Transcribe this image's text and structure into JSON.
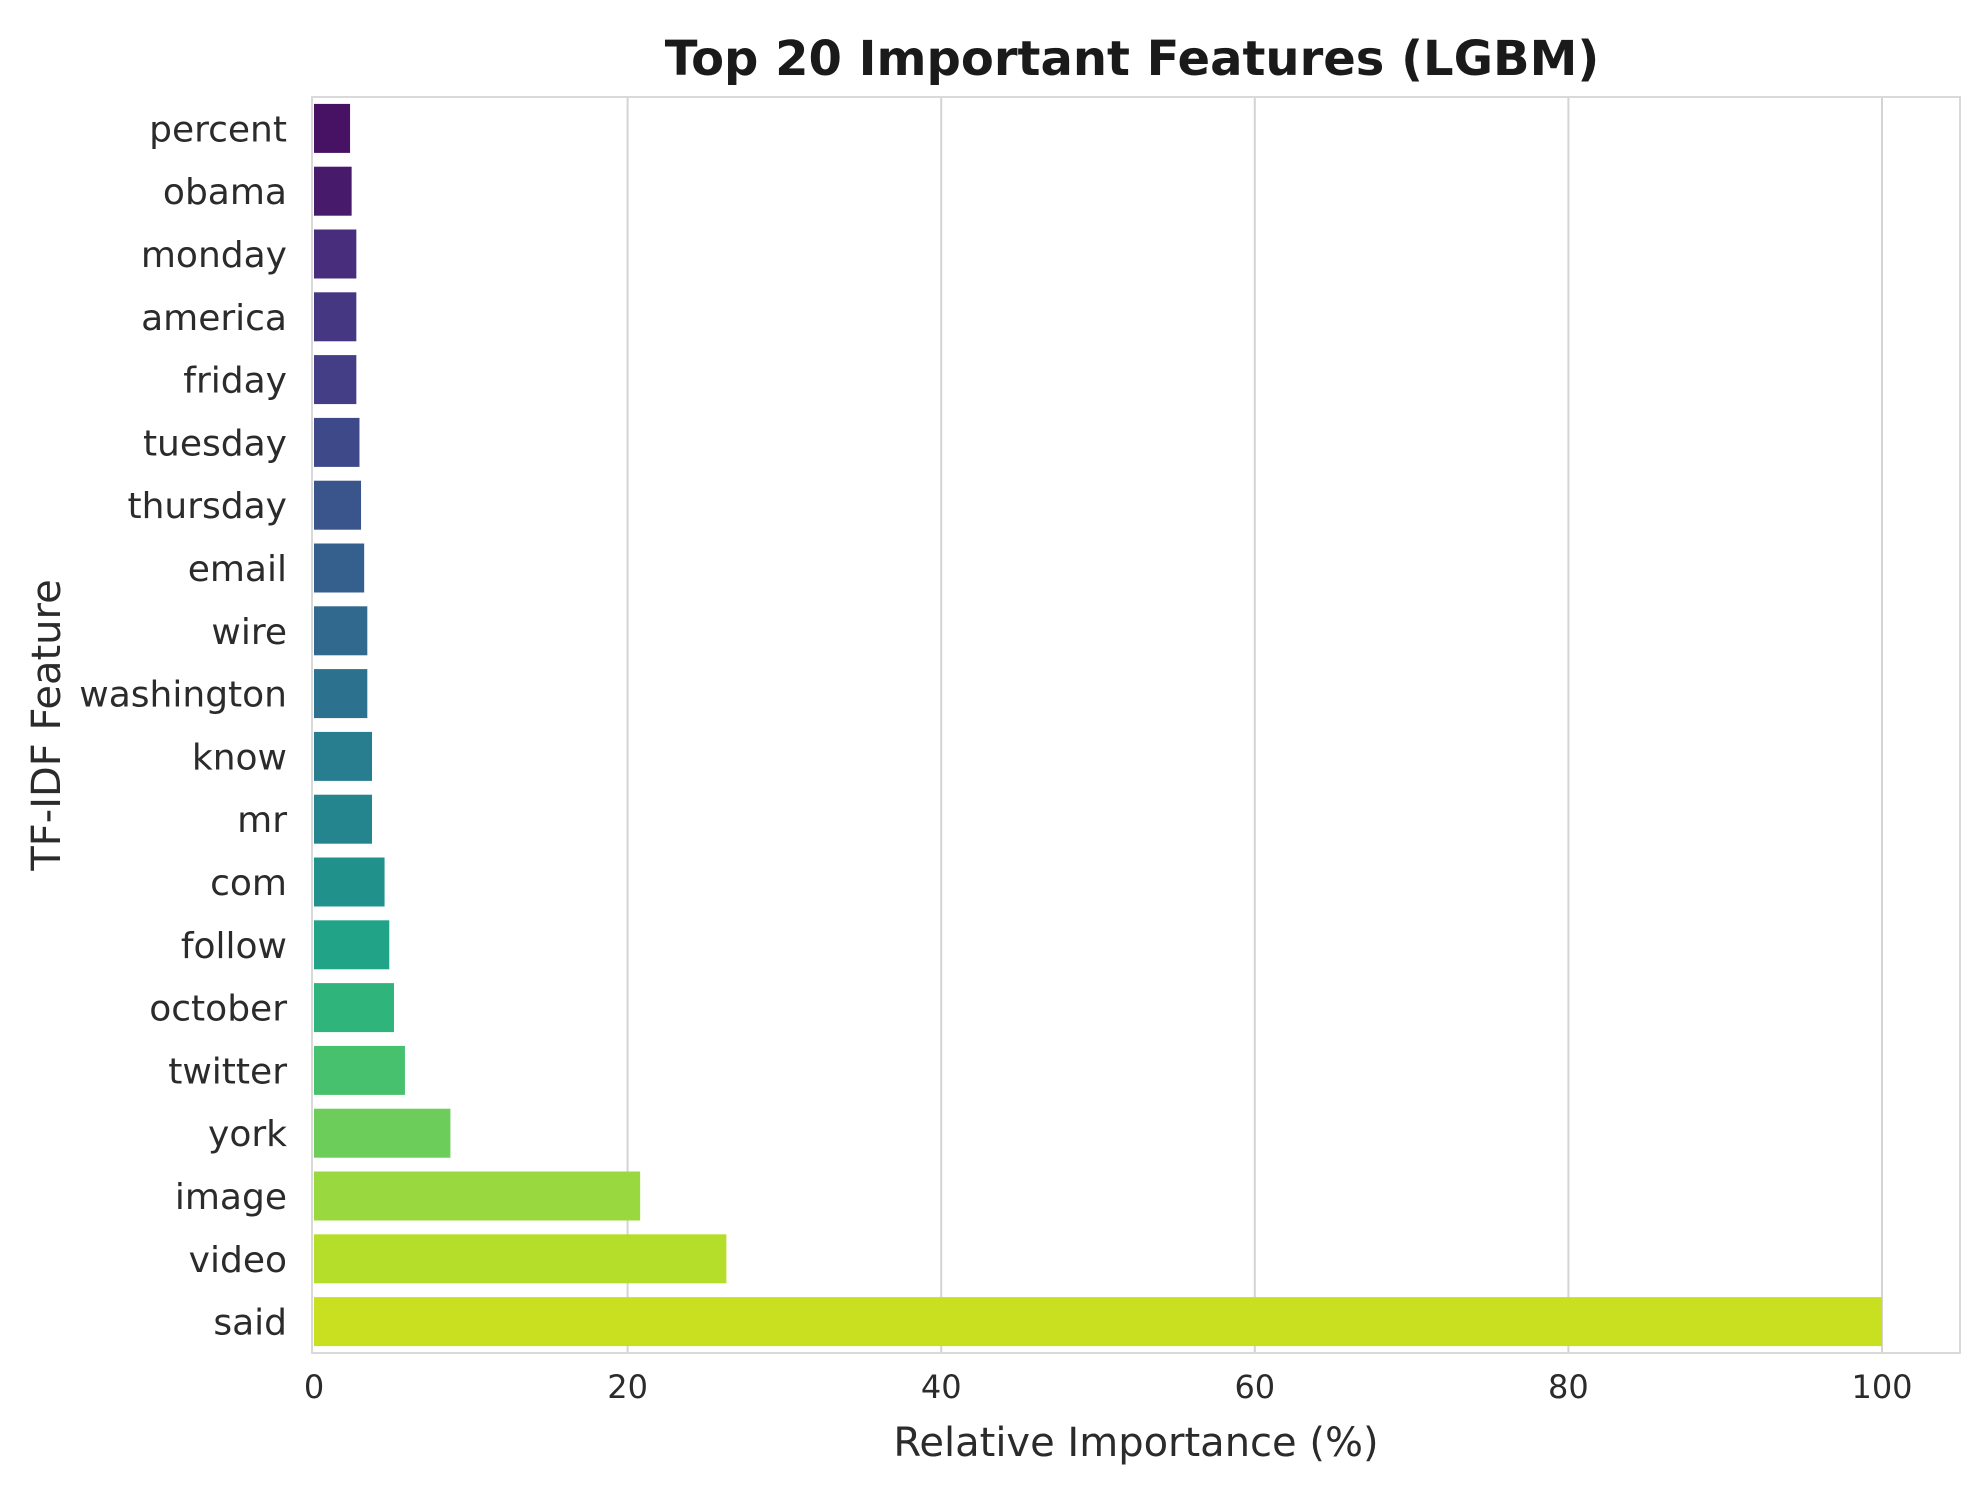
{
  "chart_data": {
    "type": "bar",
    "orientation": "horizontal",
    "title": "Top 20 Important Features (LGBM)",
    "xlabel": "Relative Importance (%)",
    "ylabel": "TF-IDF Feature",
    "xlim": [
      0,
      105
    ],
    "xticks": [
      "0",
      "20",
      "40",
      "60",
      "80",
      "100"
    ],
    "grid": "vertical",
    "legend": "none",
    "categories": [
      "percent",
      "obama",
      "monday",
      "america",
      "friday",
      "tuesday",
      "thursday",
      "email",
      "wire",
      "washington",
      "know",
      "mr",
      "com",
      "follow",
      "october",
      "twitter",
      "york",
      "image",
      "video",
      "said"
    ],
    "values": [
      2.3,
      2.4,
      2.7,
      2.7,
      2.7,
      2.9,
      3.0,
      3.2,
      3.4,
      3.4,
      3.7,
      3.7,
      4.5,
      4.8,
      5.1,
      5.8,
      8.7,
      20.8,
      26.3,
      100
    ],
    "colors": [
      "#471164",
      "#481a6c",
      "#472d7b",
      "#453781",
      "#433e85",
      "#3e4989",
      "#3a548c",
      "#355f8d",
      "#31688e",
      "#2c718e",
      "#287d8e",
      "#25858e",
      "#21918c",
      "#20a386",
      "#2fb47c",
      "#48c16e",
      "#6ccd5a",
      "#99d83e",
      "#b5de2b",
      "#c8e020"
    ]
  }
}
